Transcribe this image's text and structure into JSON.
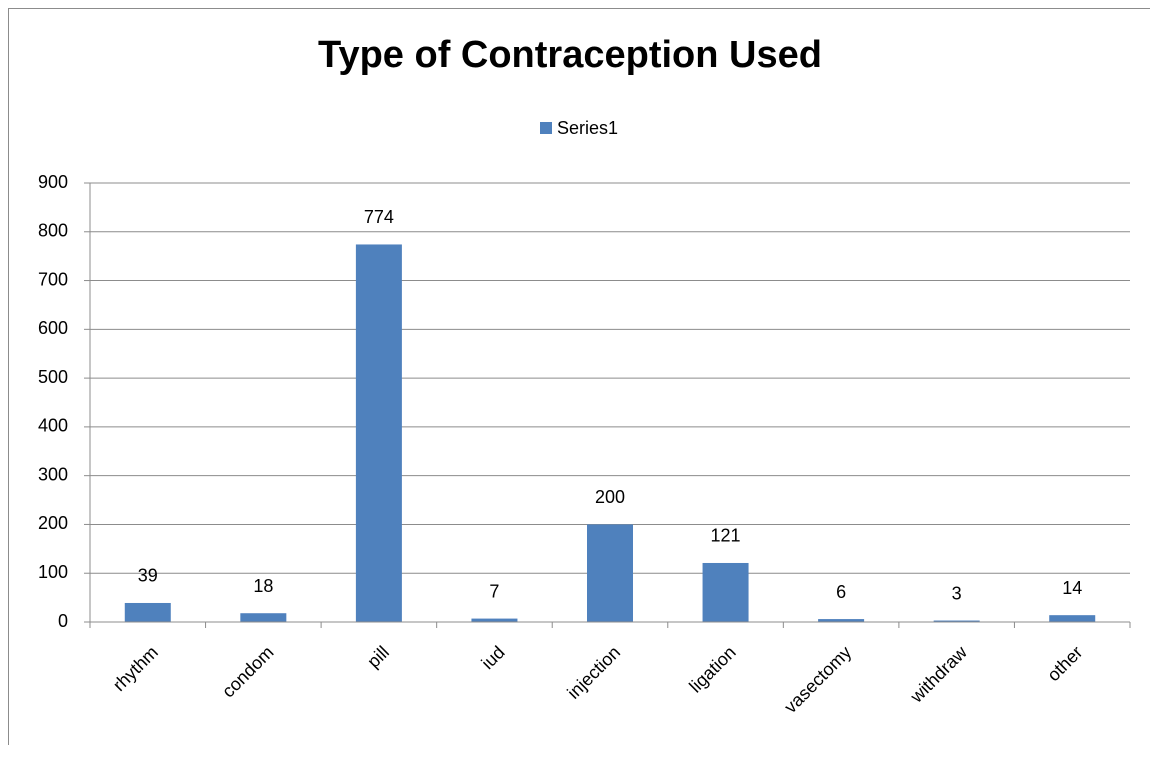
{
  "chart_data": {
    "type": "bar",
    "title": "Type of Contraception Used",
    "categories": [
      "rhythm",
      "condom",
      "pill",
      "iud",
      "injection",
      "ligation",
      "vasectomy",
      "withdraw",
      "other"
    ],
    "series": [
      {
        "name": "Series1",
        "color": "#4f81bd",
        "values": [
          39,
          18,
          774,
          7,
          200,
          121,
          6,
          3,
          14
        ]
      }
    ],
    "ylim": [
      0,
      900
    ],
    "yticks": [
      0,
      100,
      200,
      300,
      400,
      500,
      600,
      700,
      800,
      900
    ],
    "grid": true,
    "legend": "top"
  }
}
